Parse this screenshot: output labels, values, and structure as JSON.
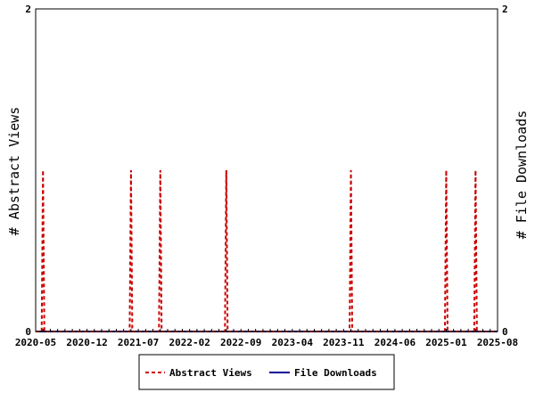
{
  "chart_data": {
    "type": "line",
    "title": "",
    "x_tick_labels": [
      "2020-05",
      "2020-12",
      "2021-07",
      "2022-02",
      "2022-09",
      "2023-04",
      "2023-11",
      "2024-06",
      "2025-01",
      "2025-08"
    ],
    "y_left": {
      "label": "# Abstract Views",
      "ylim": [
        0,
        2
      ],
      "ticks": [
        "0",
        "2"
      ]
    },
    "y_right": {
      "label": "# File Downloads",
      "ylim": [
        0,
        2
      ],
      "ticks": [
        "0",
        "2"
      ]
    },
    "grid": false,
    "legend_position": "bottom-center",
    "x": [
      "2020-05",
      "2020-06",
      "2020-07",
      "2020-08",
      "2020-09",
      "2020-10",
      "2020-11",
      "2020-12",
      "2021-01",
      "2021-02",
      "2021-03",
      "2021-04",
      "2021-05",
      "2021-06",
      "2021-07",
      "2021-08",
      "2021-09",
      "2021-10",
      "2021-11",
      "2021-12",
      "2022-01",
      "2022-02",
      "2022-03",
      "2022-04",
      "2022-05",
      "2022-06",
      "2022-07",
      "2022-08",
      "2022-09",
      "2022-10",
      "2022-11",
      "2022-12",
      "2023-01",
      "2023-02",
      "2023-03",
      "2023-04",
      "2023-05",
      "2023-06",
      "2023-07",
      "2023-08",
      "2023-09",
      "2023-10",
      "2023-11",
      "2023-12",
      "2024-01",
      "2024-02",
      "2024-03",
      "2024-04",
      "2024-05",
      "2024-06",
      "2024-07",
      "2024-08",
      "2024-09",
      "2024-10",
      "2024-11",
      "2024-12",
      "2025-01",
      "2025-02",
      "2025-03",
      "2025-04",
      "2025-05",
      "2025-06",
      "2025-07",
      "2025-08"
    ],
    "series": [
      {
        "name": "Abstract Views",
        "color": "#cc0000",
        "style": "dashed",
        "axis": "left",
        "values": [
          0,
          1,
          0,
          0,
          0,
          0,
          0,
          0,
          0,
          0,
          0,
          0,
          0,
          1,
          0,
          0,
          0,
          1,
          0,
          0,
          0,
          0,
          0,
          0,
          0,
          0,
          1,
          0,
          0,
          0,
          0,
          0,
          0,
          0,
          0,
          0,
          0,
          0,
          0,
          0,
          0,
          0,
          0,
          1,
          0,
          0,
          0,
          0,
          0,
          0,
          0,
          0,
          0,
          0,
          0,
          0,
          1,
          0,
          0,
          0,
          1,
          0,
          0,
          0
        ]
      },
      {
        "name": "File Downloads",
        "color": "#000099",
        "style": "solid",
        "axis": "right",
        "values": [
          0,
          0,
          0,
          0,
          0,
          0,
          0,
          0,
          0,
          0,
          0,
          0,
          0,
          0,
          0,
          0,
          0,
          0,
          0,
          0,
          0,
          0,
          0,
          0,
          0,
          0,
          0,
          0,
          0,
          0,
          0,
          0,
          0,
          0,
          0,
          0,
          0,
          0,
          0,
          0,
          0,
          0,
          0,
          0,
          0,
          0,
          0,
          0,
          0,
          0,
          0,
          0,
          0,
          0,
          0,
          0,
          0,
          0,
          0,
          0,
          0,
          0,
          0,
          0
        ]
      }
    ]
  }
}
